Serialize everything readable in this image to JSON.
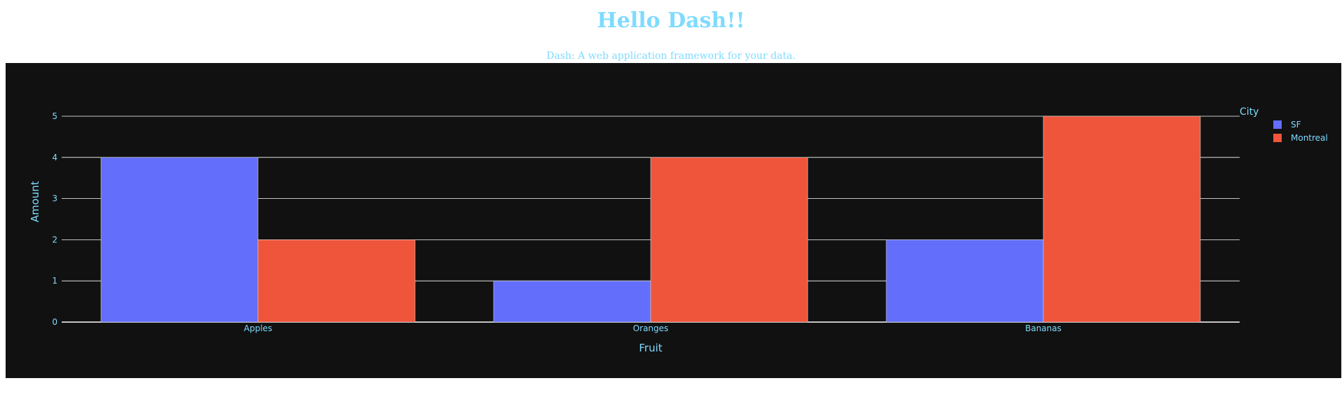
{
  "page": {
    "title": "Hello Dash!!",
    "subtitle": "Dash: A web application framework for your data."
  },
  "colors": {
    "text": "#7fdbff",
    "plot_background": "#111111",
    "page_background": "#ffffff",
    "grid": "#ffffff"
  },
  "chart_data": {
    "type": "bar",
    "barmode": "group",
    "categories": [
      "Apples",
      "Oranges",
      "Bananas"
    ],
    "series": [
      {
        "name": "SF",
        "values": [
          4,
          1,
          2
        ],
        "color": "#636efa"
      },
      {
        "name": "Montreal",
        "values": [
          2,
          4,
          5
        ],
        "color": "#ef553b"
      }
    ],
    "xlabel": "Fruit",
    "ylabel": "Amount",
    "ylim": [
      0,
      5
    ],
    "yticks": [
      "0",
      "1",
      "2",
      "3",
      "4",
      "5"
    ],
    "legend_title": "City",
    "legend_position": "top-right",
    "grid": true
  }
}
